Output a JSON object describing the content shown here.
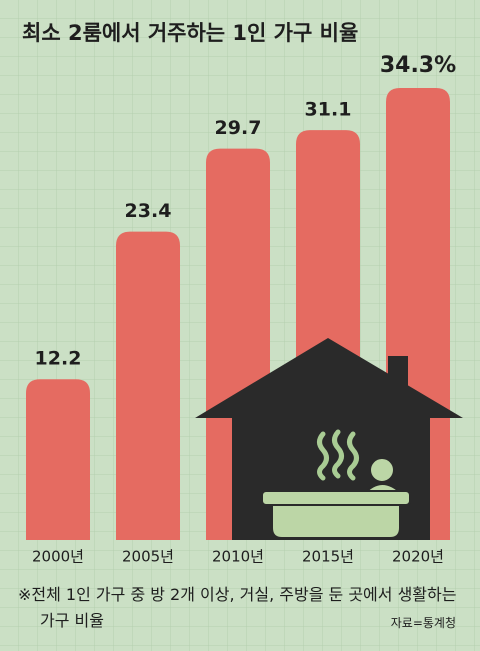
{
  "chart_data": {
    "type": "bar",
    "title": "최소 2룸에서 거주하는 1인 가구 비율",
    "categories": [
      "2000년",
      "2005년",
      "2010년",
      "2015년",
      "2020년"
    ],
    "values": [
      12.2,
      23.4,
      29.7,
      31.1,
      34.3
    ],
    "value_labels": [
      "12.2",
      "23.4",
      "29.7",
      "31.1",
      "34.3%"
    ],
    "color": "#e56b61"
  },
  "footnote": "※전체 1인 가구 중 방 2개 이상, 거실, 주방을 둔 곳에서 생활하는 가구 비율",
  "source": "자료=통계청"
}
